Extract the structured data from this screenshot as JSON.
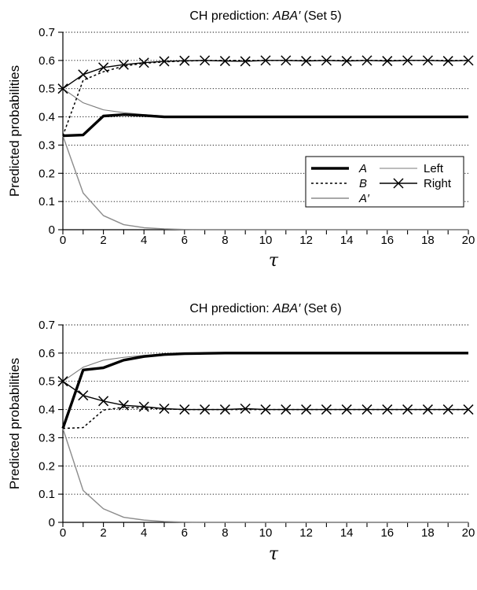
{
  "chart_data": [
    {
      "type": "line",
      "title_prefix": "CH prediction: ",
      "title_italic": "ABA′",
      "title_suffix": " (Set 5)",
      "xlabel": "τ",
      "ylabel": "Predicted probabilities",
      "xlim": [
        0,
        20
      ],
      "ylim": [
        0,
        0.7
      ],
      "xticks": [
        0,
        2,
        4,
        6,
        8,
        10,
        12,
        14,
        16,
        18,
        20
      ],
      "yticks": [
        0,
        0.1,
        0.2,
        0.3,
        0.4,
        0.5,
        0.6,
        0.7
      ],
      "grid": "horizontal-dotted",
      "legend_position": "lower-right",
      "x": [
        0,
        1,
        2,
        3,
        4,
        5,
        6,
        7,
        8,
        9,
        10,
        11,
        12,
        13,
        14,
        15,
        16,
        17,
        18,
        19,
        20
      ],
      "series": [
        {
          "name": "A",
          "style": "thick-solid",
          "values": [
            0.333,
            0.336,
            0.403,
            0.408,
            0.405,
            0.4,
            0.4,
            0.4,
            0.4,
            0.4,
            0.4,
            0.4,
            0.4,
            0.4,
            0.4,
            0.4,
            0.4,
            0.4,
            0.4,
            0.4,
            0.4
          ]
        },
        {
          "name": "B",
          "style": "dotted",
          "values": [
            0.333,
            0.53,
            0.56,
            0.58,
            0.59,
            0.595,
            0.598,
            0.6,
            0.6,
            0.6,
            0.6,
            0.6,
            0.6,
            0.6,
            0.6,
            0.6,
            0.6,
            0.6,
            0.6,
            0.6,
            0.6
          ]
        },
        {
          "name": "A′",
          "style": "gray-solid",
          "values": [
            0.333,
            0.13,
            0.05,
            0.018,
            0.007,
            0.003,
            0.001,
            0,
            0,
            0,
            0,
            0,
            0,
            0,
            0,
            0,
            0,
            0,
            0,
            0,
            0
          ]
        },
        {
          "name": "Left",
          "style": "thin-gray",
          "values": [
            0.5,
            0.45,
            0.425,
            0.415,
            0.408,
            0.403,
            0.401,
            0.4,
            0.4,
            0.4,
            0.4,
            0.4,
            0.4,
            0.4,
            0.4,
            0.4,
            0.4,
            0.4,
            0.4,
            0.4,
            0.4
          ]
        },
        {
          "name": "Right",
          "style": "black-x-markers",
          "values": [
            0.5,
            0.55,
            0.575,
            0.585,
            0.592,
            0.597,
            0.599,
            0.6,
            0.598,
            0.597,
            0.6,
            0.6,
            0.598,
            0.6,
            0.598,
            0.6,
            0.598,
            0.6,
            0.6,
            0.598,
            0.6
          ]
        }
      ]
    },
    {
      "type": "line",
      "title_prefix": "CH prediction: ",
      "title_italic": "ABA′",
      "title_suffix": " (Set 6)",
      "xlabel": "τ",
      "ylabel": "Predicted probabilities",
      "xlim": [
        0,
        20
      ],
      "ylim": [
        0,
        0.7
      ],
      "xticks": [
        0,
        2,
        4,
        6,
        8,
        10,
        12,
        14,
        16,
        18,
        20
      ],
      "yticks": [
        0,
        0.1,
        0.2,
        0.3,
        0.4,
        0.5,
        0.6,
        0.7
      ],
      "grid": "horizontal-dotted",
      "x": [
        0,
        1,
        2,
        3,
        4,
        5,
        6,
        7,
        8,
        9,
        10,
        11,
        12,
        13,
        14,
        15,
        16,
        17,
        18,
        19,
        20
      ],
      "series": [
        {
          "name": "A",
          "style": "thick-solid",
          "values": [
            0.333,
            0.54,
            0.548,
            0.575,
            0.588,
            0.595,
            0.598,
            0.599,
            0.6,
            0.6,
            0.6,
            0.6,
            0.6,
            0.6,
            0.6,
            0.6,
            0.6,
            0.6,
            0.6,
            0.6,
            0.6
          ]
        },
        {
          "name": "B",
          "style": "dotted",
          "values": [
            0.333,
            0.336,
            0.398,
            0.408,
            0.405,
            0.402,
            0.4,
            0.4,
            0.4,
            0.4,
            0.4,
            0.4,
            0.4,
            0.4,
            0.4,
            0.4,
            0.4,
            0.4,
            0.4,
            0.4,
            0.4
          ]
        },
        {
          "name": "A′",
          "style": "gray-solid",
          "values": [
            0.333,
            0.113,
            0.048,
            0.018,
            0.008,
            0.003,
            0.001,
            0,
            0,
            0,
            0,
            0,
            0,
            0,
            0,
            0,
            0,
            0,
            0,
            0,
            0
          ]
        },
        {
          "name": "Left",
          "style": "thin-gray",
          "values": [
            0.5,
            0.55,
            0.575,
            0.585,
            0.592,
            0.597,
            0.599,
            0.6,
            0.6,
            0.6,
            0.6,
            0.6,
            0.6,
            0.6,
            0.6,
            0.6,
            0.6,
            0.6,
            0.6,
            0.6,
            0.6
          ]
        },
        {
          "name": "Right",
          "style": "black-x-markers",
          "values": [
            0.5,
            0.45,
            0.43,
            0.415,
            0.41,
            0.403,
            0.4,
            0.4,
            0.4,
            0.403,
            0.4,
            0.4,
            0.4,
            0.4,
            0.4,
            0.4,
            0.4,
            0.4,
            0.4,
            0.4,
            0.4
          ]
        }
      ]
    }
  ],
  "legend": {
    "items": [
      {
        "name": "A",
        "italic": true,
        "style": "thick-solid"
      },
      {
        "name": "B",
        "italic": true,
        "style": "dotted"
      },
      {
        "name": "A′",
        "italic": true,
        "style": "gray-solid"
      },
      {
        "name": "Left",
        "italic": false,
        "style": "thin-gray"
      },
      {
        "name": "Right",
        "italic": false,
        "style": "black-x-markers"
      }
    ]
  },
  "colors": {
    "black": "#000000",
    "gray_line": "#8c8c8c",
    "left_line": "#7a7a7a",
    "grid": "#000000"
  }
}
